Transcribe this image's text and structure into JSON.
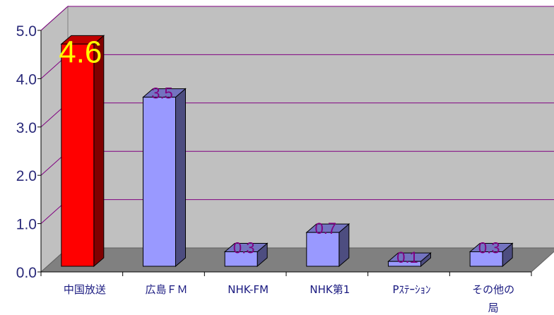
{
  "chart_data": {
    "type": "bar",
    "title": "",
    "xlabel": "",
    "ylabel": "",
    "ylim": [
      0,
      5
    ],
    "yticks": [
      "0.0",
      "1.0",
      "2.0",
      "3.0",
      "4.0",
      "5.0"
    ],
    "categories": [
      "中国放送",
      "広島ＦＭ",
      "NHK-FM",
      "NHK第1",
      "Pｽﾃｰｼｮﾝ",
      "その他の局"
    ],
    "values": [
      4.6,
      3.5,
      0.3,
      0.7,
      0.1,
      0.3
    ],
    "data_labels": [
      "4.6",
      "3.5",
      "0.3",
      "0.7",
      "0.1",
      "0.3"
    ],
    "grid": true,
    "legend": "none",
    "colors": {
      "highlight_front": "#ff0000",
      "highlight_side": "#800000",
      "highlight_top": "#c00000",
      "bar_front": "#9999ff",
      "bar_side": "#4d4d80",
      "bar_top": "#7373c0",
      "wall": "#c0c0c0",
      "floor": "#808080",
      "gridline": "#800080",
      "big_label": "#ffff00",
      "label": "#800080"
    }
  }
}
